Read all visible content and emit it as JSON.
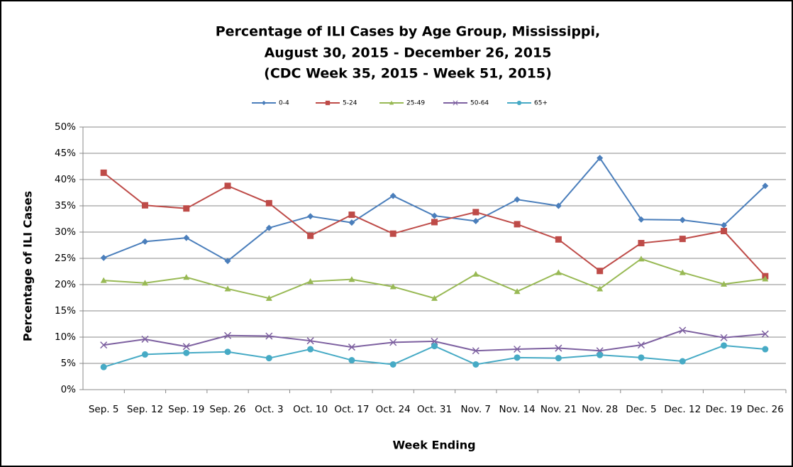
{
  "chart_data": {
    "type": "line",
    "title": [
      "Percentage of ILI Cases by Age Group, Mississippi,",
      "August 30, 2015 - December 26, 2015",
      "(CDC Week 35, 2015 - Week 51, 2015)"
    ],
    "x_label": "Week Ending",
    "y_label": "Percentage of ILI Cases",
    "categories": [
      "Sep. 5",
      "Sep. 12",
      "Sep. 19",
      "Sep. 26",
      "Oct. 3",
      "Oct. 10",
      "Oct. 17",
      "Oct. 24",
      "Oct. 31",
      "Nov. 7",
      "Nov. 14",
      "Nov. 21",
      "Nov. 28",
      "Dec. 5",
      "Dec. 12",
      "Dec. 19",
      "Dec. 26"
    ],
    "series": [
      {
        "name": "0-4",
        "color": "#4a7ebb",
        "marker": "diamond",
        "values": [
          25.1,
          28.2,
          28.9,
          24.5,
          30.8,
          33.0,
          31.8,
          36.9,
          33.1,
          32.1,
          36.2,
          35.0,
          44.1,
          32.4,
          32.3,
          31.3,
          38.8
        ]
      },
      {
        "name": "5-24",
        "color": "#be4b48",
        "marker": "square",
        "values": [
          41.3,
          35.1,
          34.5,
          38.8,
          35.5,
          29.3,
          33.3,
          29.7,
          31.9,
          33.8,
          31.5,
          28.6,
          22.6,
          27.9,
          28.7,
          30.2,
          21.6
        ]
      },
      {
        "name": "25-49",
        "color": "#98b954",
        "marker": "triangle",
        "values": [
          20.8,
          20.3,
          21.4,
          19.2,
          17.4,
          20.6,
          21.0,
          19.6,
          17.4,
          22.0,
          18.7,
          22.3,
          19.2,
          24.9,
          22.3,
          20.1,
          21.1
        ]
      },
      {
        "name": "50-64",
        "color": "#7d60a0",
        "marker": "x",
        "values": [
          8.5,
          9.6,
          8.2,
          10.3,
          10.2,
          9.3,
          8.1,
          9.0,
          9.2,
          7.4,
          7.7,
          7.9,
          7.4,
          8.5,
          11.3,
          9.9,
          10.6
        ]
      },
      {
        "name": "65+",
        "color": "#46aac5",
        "marker": "circle",
        "values": [
          4.3,
          6.7,
          7.0,
          7.2,
          6.0,
          7.7,
          5.6,
          4.8,
          8.3,
          4.8,
          6.1,
          6.0,
          6.6,
          6.1,
          5.4,
          8.4,
          7.7
        ]
      }
    ],
    "ylim": [
      0,
      50
    ],
    "yticks": [
      {
        "value": 0,
        "label": "0%"
      },
      {
        "value": 5,
        "label": "5%"
      },
      {
        "value": 10,
        "label": "10%"
      },
      {
        "value": 15,
        "label": "15%"
      },
      {
        "value": 20,
        "label": "20%"
      },
      {
        "value": 25,
        "label": "25%"
      },
      {
        "value": 30,
        "label": "30%"
      },
      {
        "value": 35,
        "label": "35%"
      },
      {
        "value": 40,
        "label": "40%"
      },
      {
        "value": 45,
        "label": "45%"
      },
      {
        "value": 50,
        "label": "50%"
      }
    ],
    "grid": true,
    "legend": "top"
  }
}
